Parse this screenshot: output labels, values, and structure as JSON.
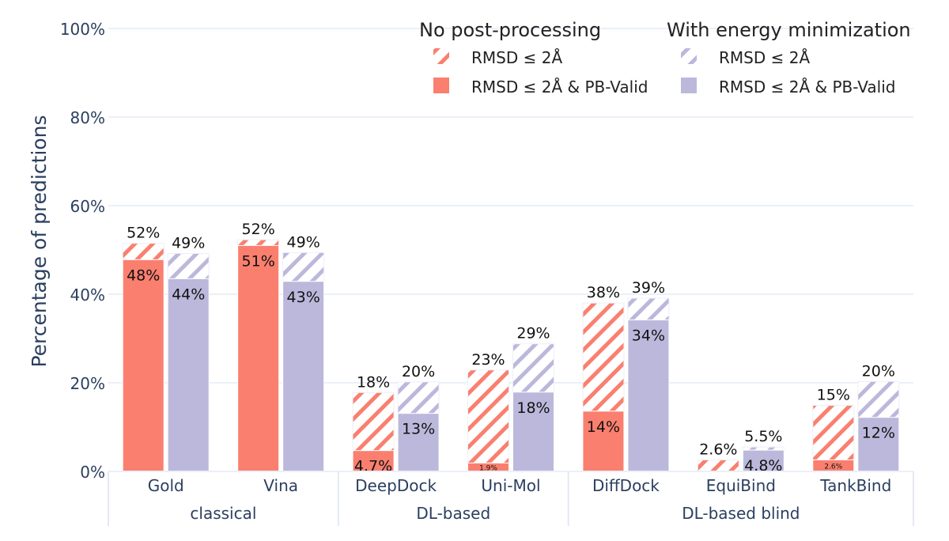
{
  "chart_data": {
    "type": "bar",
    "ylabel": "Percentage of predictions",
    "ylim": [
      0,
      100
    ],
    "yticks": [
      0,
      20,
      40,
      60,
      80,
      100
    ],
    "ytick_labels": [
      "0%",
      "20%",
      "40%",
      "60%",
      "80%",
      "100%"
    ],
    "grid": true,
    "legend": {
      "placement": "top-right",
      "groups": [
        {
          "title": "No post-processing",
          "items": [
            "RMSD ≤ 2Å",
            "RMSD ≤ 2Å & PB-Valid"
          ]
        },
        {
          "title": "With energy minimization",
          "items": [
            "RMSD ≤ 2Å",
            "RMSD ≤ 2Å & PB-Valid"
          ]
        }
      ]
    },
    "colors": {
      "no_post": "#fa7f6f",
      "energy_min": "#bcb8dc",
      "axis_text": "#2a3f5f",
      "grid": "#ebf0f8"
    },
    "groups": [
      "classical",
      "DL-based",
      "DL-based blind"
    ],
    "categories": [
      {
        "name": "Gold",
        "group": "classical"
      },
      {
        "name": "Vina",
        "group": "classical"
      },
      {
        "name": "DeepDock",
        "group": "DL-based"
      },
      {
        "name": "Uni-Mol",
        "group": "DL-based"
      },
      {
        "name": "DiffDock",
        "group": "DL-based blind"
      },
      {
        "name": "EquiBind",
        "group": "DL-based blind"
      },
      {
        "name": "TankBind",
        "group": "DL-based blind"
      }
    ],
    "series": [
      {
        "name": "No post-processing",
        "rmsd": [
          51.5,
          52.3,
          17.8,
          22.9,
          38.0,
          2.6,
          14.9
        ],
        "rmsd_labels": [
          "52%",
          "52%",
          "18%",
          "23%",
          "38%",
          "2.6%",
          "15%"
        ],
        "pb_valid": [
          47.8,
          51.0,
          4.7,
          1.9,
          13.6,
          0.0,
          2.6
        ],
        "pb_labels": [
          "48%",
          "51%",
          "4.7%",
          "1.9%",
          "14%",
          "",
          "2.6%"
        ]
      },
      {
        "name": "With energy minimization",
        "rmsd": [
          49.2,
          49.4,
          20.2,
          28.8,
          39.1,
          5.5,
          20.3
        ],
        "rmsd_labels": [
          "49%",
          "49%",
          "20%",
          "29%",
          "39%",
          "5.5%",
          "20%"
        ],
        "pb_valid": [
          43.5,
          42.9,
          13.1,
          17.9,
          34.2,
          4.8,
          12.2
        ],
        "pb_labels": [
          "44%",
          "43%",
          "13%",
          "18%",
          "34%",
          "4.8%",
          "12%"
        ]
      }
    ]
  }
}
